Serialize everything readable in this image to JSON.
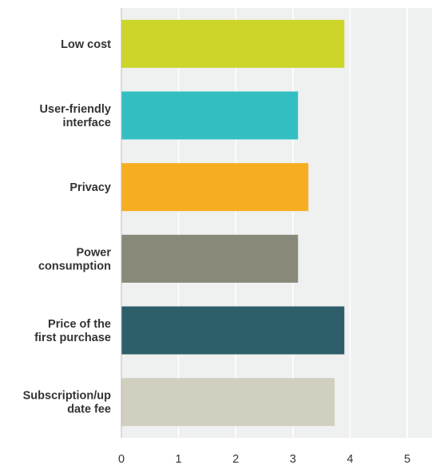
{
  "chart_data": {
    "type": "bar",
    "orientation": "horizontal",
    "categories": [
      [
        "Low cost"
      ],
      [
        "User-friendly",
        "interface"
      ],
      [
        "Privacy"
      ],
      [
        "Power",
        "consumption"
      ],
      [
        "Price of the",
        "first purchase"
      ],
      [
        "Subscription/up",
        "date fee"
      ]
    ],
    "values": [
      3.9,
      3.09,
      3.27,
      3.09,
      3.9,
      3.73
    ],
    "colors": [
      "#CDD42A",
      "#33BFC2",
      "#F6AE20",
      "#888978",
      "#2D5F6B",
      "#D0CFC0"
    ],
    "xlim": [
      0,
      5.5
    ],
    "xticks": [
      0,
      1,
      2,
      3,
      4,
      5
    ],
    "grid": "vertical",
    "title": "",
    "xlabel": "",
    "ylabel": ""
  }
}
